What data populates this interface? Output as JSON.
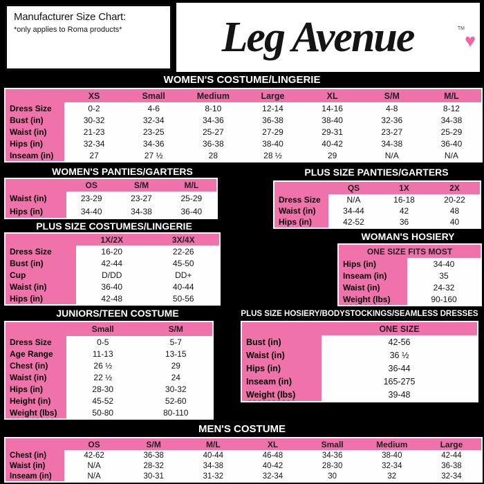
{
  "colors": {
    "accent_pink": "#EF72AB",
    "heart_pink": "#F563A6",
    "banner_bg": "#000000",
    "spellcheck_red": "#D03A2B"
  },
  "icons": {
    "heart": "♥"
  },
  "note": {
    "title": "Manufacturer Size Chart:",
    "subtitle": "*only applies to Roma products*"
  },
  "logo": {
    "text": "Leg Avenue",
    "tm": "TM"
  },
  "tables": {
    "womens_costume": {
      "title": "WOMEN'S COSTUME/LINGERIE",
      "columns": [
        "XS",
        "Small",
        "Medium",
        "Large",
        "XL",
        "S/M",
        "M/L"
      ],
      "rows": [
        {
          "label": "Dress Size",
          "values": [
            "0-2",
            "4-6",
            "8-10",
            "12-14",
            "14-16",
            "4-8",
            "8-12"
          ]
        },
        {
          "label": "Bust (in)",
          "values": [
            "30-32",
            "32-34",
            "34-36",
            "36-38",
            "38-40",
            "32-36",
            "34-38"
          ]
        },
        {
          "label": "Waist (in)",
          "values": [
            "21-23",
            "23-25",
            "25-27",
            "27-29",
            "29-31",
            "23-27",
            "25-29"
          ]
        },
        {
          "label": "Hips (in)",
          "values": [
            "32-34",
            "34-36",
            "36-38",
            "38-40",
            "40-42",
            "34-38",
            "36-40"
          ]
        },
        {
          "label": "Inseam (in)",
          "values": [
            "27",
            "27 ½",
            "28",
            "28 ½",
            "29",
            "N/A",
            "N/A"
          ]
        }
      ]
    },
    "womens_panties": {
      "title": "WOMEN'S PANTIES/GARTERS",
      "columns": [
        "OS",
        "S/M",
        "M/L"
      ],
      "rows": [
        {
          "label": "Waist (in)",
          "values": [
            "23-29",
            "23-27",
            "25-29"
          ]
        },
        {
          "label": "Hips (in)",
          "values": [
            "34-40",
            "34-38",
            "36-40"
          ]
        }
      ]
    },
    "plus_panties": {
      "title": "PLUS SIZE PANTIES/GARTERS",
      "columns": [
        "QS",
        "1X",
        "2X"
      ],
      "rows": [
        {
          "label": "Dress Size",
          "values": [
            "N/A",
            "16-18",
            "20-22"
          ]
        },
        {
          "label": "Waist (in)",
          "values": [
            "34-44",
            "42",
            "48"
          ]
        },
        {
          "label": "Hips (in)",
          "values": [
            "42-52",
            "36",
            "40"
          ]
        }
      ]
    },
    "plus_costumes": {
      "title": "PLUS SIZE COSTUMES/LINGERIE",
      "columns": [
        "1X/2X",
        "3X/4X"
      ],
      "rows": [
        {
          "label": "Dress Size",
          "values": [
            "16-20",
            "22-26"
          ]
        },
        {
          "label": "Bust (in)",
          "values": [
            "42-44",
            "45-50"
          ]
        },
        {
          "label": "Cup",
          "values": [
            "D/DD",
            "DD+"
          ]
        },
        {
          "label": "Waist (in)",
          "values": [
            "36-40",
            "40-44"
          ]
        },
        {
          "label": "Hips (in)",
          "values": [
            "42-48",
            "50-56"
          ]
        }
      ]
    },
    "womans_hosiery": {
      "title": "WOMAN'S HOSIERY",
      "columns": [
        "ONE SIZE FITS MOST"
      ],
      "header_span": "all",
      "rows": [
        {
          "label": "Hips (in)",
          "values": [
            "34-40"
          ]
        },
        {
          "label": "Inseam (in)",
          "values": [
            "35"
          ]
        },
        {
          "label": "Waist (in)",
          "values": [
            "24-32"
          ]
        },
        {
          "label": "Weight (lbs)",
          "values": [
            "90-160"
          ],
          "squiggle": true
        }
      ]
    },
    "juniors": {
      "title": "JUNIORS/TEEN COSTUME",
      "columns": [
        "Small",
        "S/M"
      ],
      "rows": [
        {
          "label": "Dress Size",
          "values": [
            "0-5",
            "5-7"
          ]
        },
        {
          "label": "Age Range",
          "values": [
            "11-13",
            "13-15"
          ]
        },
        {
          "label": "Chest (in)",
          "values": [
            "26 ½",
            "29"
          ]
        },
        {
          "label": "Waist (in)",
          "values": [
            "22 ½",
            "24"
          ]
        },
        {
          "label": "Hips (in)",
          "values": [
            "28-30",
            "30-32"
          ]
        },
        {
          "label": "Height (in)",
          "values": [
            "45-52",
            "52-60"
          ]
        },
        {
          "label": "Weight (lbs)",
          "values": [
            "50-80",
            "80-110"
          ],
          "squiggle": true
        }
      ]
    },
    "plus_hosiery": {
      "title": "PLUS SIZE HOSIERY/BODYSTOCKINGS/SEAMLESS DRESSES",
      "columns": [
        "ONE SIZE"
      ],
      "rows": [
        {
          "label": "Bust (in)",
          "values": [
            "42-56"
          ]
        },
        {
          "label": "Waist (in)",
          "values": [
            "36 ½"
          ]
        },
        {
          "label": "Hips (in)",
          "values": [
            "36-44"
          ]
        },
        {
          "label": "Inseam (in)",
          "values": [
            "165-275"
          ]
        },
        {
          "label": "Weight (lbs)",
          "values": [
            "39-48"
          ],
          "squiggle": true
        }
      ]
    },
    "mens": {
      "title": "MEN'S COSTUME",
      "columns": [
        "OS",
        "S/M",
        "M/L",
        "XL",
        "Small",
        "Medium",
        "Large"
      ],
      "rows": [
        {
          "label": "Chest (in)",
          "values": [
            "42-62",
            "36-38",
            "40-44",
            "46-48",
            "34-36",
            "38-40",
            "42-44"
          ]
        },
        {
          "label": "Waist (in)",
          "values": [
            "N/A",
            "28-32",
            "34-38",
            "40-42",
            "28-30",
            "32-34",
            "36-38"
          ]
        },
        {
          "label": "Inseam (in)",
          "values": [
            "N/A",
            "30-31",
            "31-32",
            "32-34",
            "30",
            "32",
            "32-34"
          ]
        }
      ]
    }
  }
}
